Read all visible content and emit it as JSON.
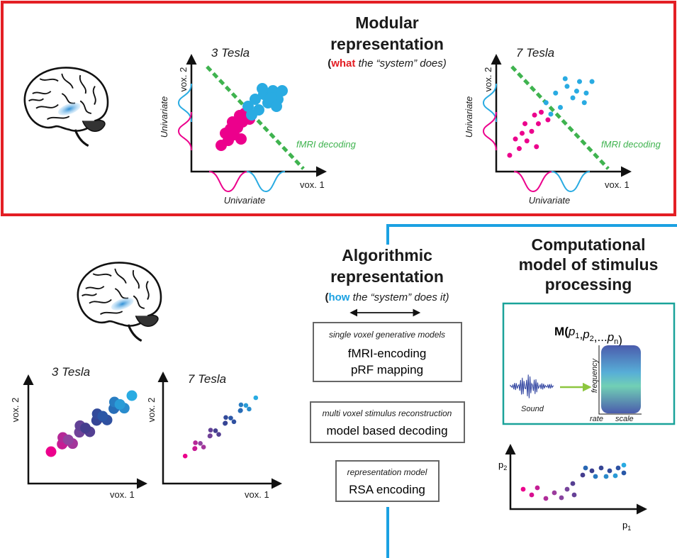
{
  "modular": {
    "title_lines": [
      "Modular",
      "representation"
    ],
    "subtitle": {
      "open": "(",
      "highlight": "what",
      "rest": " the “system” does)"
    },
    "panels": [
      {
        "title": "3 Tesla",
        "y_label": "vox. 2",
        "x_label": "vox. 1",
        "y_marginal_label": "Univariate",
        "x_marginal_label": "Univariate",
        "decoder_label": "fMRI decoding"
      },
      {
        "title": "7 Tesla",
        "y_label": "vox. 2",
        "x_label": "vox. 1",
        "y_marginal_label": "Univariate",
        "x_marginal_label": "Univariate",
        "decoder_label": "fMRI decoding"
      }
    ]
  },
  "multivariate_panels": [
    {
      "title": "3 Tesla",
      "y_label": "vox. 2",
      "x_label": "vox. 1"
    },
    {
      "title": "7 Tesla",
      "y_label": "vox. 2",
      "x_label": "vox. 1"
    }
  ],
  "algorithmic": {
    "title_lines": [
      "Algorithmic",
      "representation"
    ],
    "subtitle": {
      "open": "(",
      "highlight": "how",
      "rest": " the “system” does it)"
    },
    "methods": [
      {
        "category": "single voxel generative models",
        "items": [
          "fMRI-encoding",
          "pRF mapping"
        ]
      },
      {
        "category": "multi voxel stimulus reconstruction",
        "items": [
          "model based decoding"
        ]
      },
      {
        "category": "representation model",
        "items": [
          "RSA encoding"
        ]
      }
    ]
  },
  "computational": {
    "title_lines": [
      "Computational",
      "model of stimulus",
      "processing"
    ],
    "formula": [
      {
        "text": "M("
      },
      {
        "text": "p",
        "sub": "1"
      },
      {
        "text": ","
      },
      {
        "text": "p",
        "sub": "2"
      },
      {
        "text": ",..."
      },
      {
        "text": "p",
        "sub": "n"
      },
      {
        "text": ")"
      }
    ],
    "sound_label": "Sound",
    "spectrogram_labels": {
      "y": "frequency",
      "x_left": "rate",
      "x_right": "scale"
    },
    "param_axes": {
      "y": {
        "text": "p",
        "sub": "2"
      },
      "x": {
        "text": "p",
        "sub": "1"
      }
    }
  }
}
